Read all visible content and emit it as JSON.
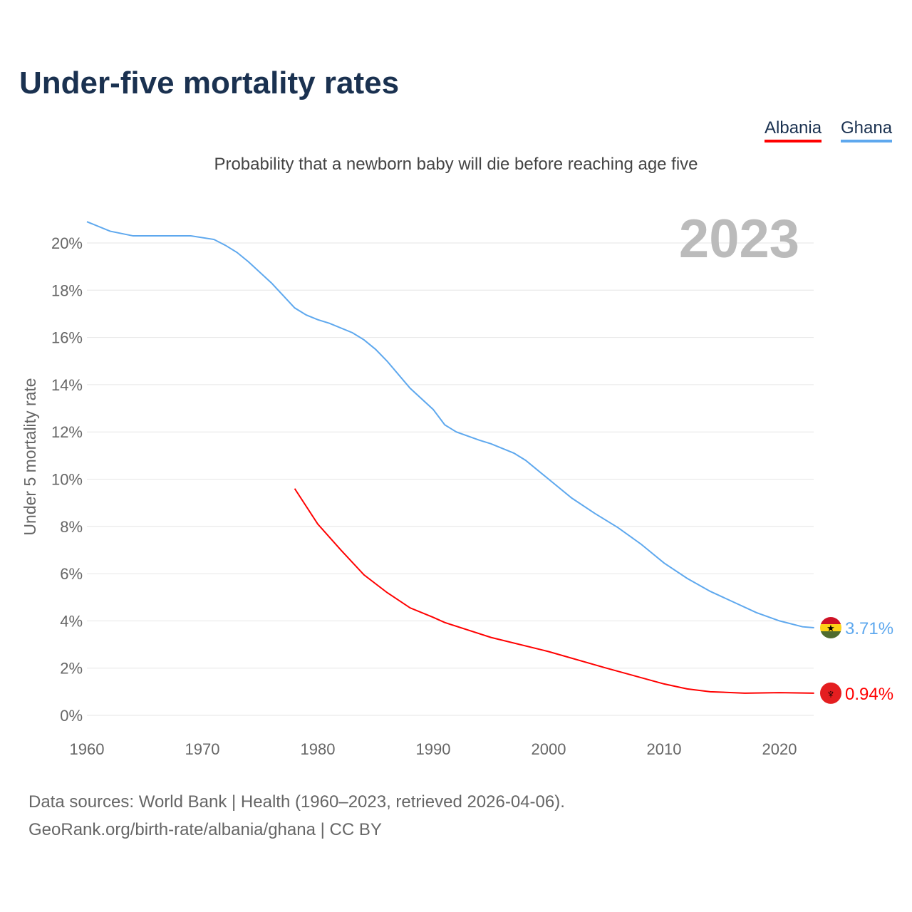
{
  "title": "Under-five mortality rates",
  "subtitle": "Probability that a newborn baby will die before reaching age five",
  "footer": {
    "line1": "Data sources: World Bank | Health (1960–2023, retrieved 2026-04-06).",
    "line2": "GeoRank.org/birth-rate/albania/ghana | CC BY"
  },
  "chart_data": {
    "type": "line",
    "title": "Under-five mortality rates",
    "xlabel": "",
    "ylabel": "Under 5 mortality rate",
    "year_label": "2023",
    "xlim": [
      1960,
      2023
    ],
    "ylim": [
      0,
      20
    ],
    "x_ticks": [
      1960,
      1970,
      1980,
      1990,
      2000,
      2010,
      2020
    ],
    "y_ticks": [
      0,
      2,
      4,
      6,
      8,
      10,
      12,
      14,
      16,
      18,
      20
    ],
    "y_tick_labels": [
      "0%",
      "2%",
      "4%",
      "6%",
      "8%",
      "10%",
      "12%",
      "14%",
      "16%",
      "18%",
      "20%"
    ],
    "grid": true,
    "legend": "top-right",
    "series": [
      {
        "name": "Albania",
        "color": "#ff0000",
        "end_label": "0.94%",
        "flag": "albania-flag",
        "x": [
          1978,
          1980,
          1982,
          1984,
          1986,
          1988,
          1990,
          1991,
          1995,
          2000,
          2005,
          2010,
          2012,
          2014,
          2017,
          2020,
          2023
        ],
        "y": [
          9.6,
          8.1,
          7.0,
          5.95,
          5.2,
          4.55,
          4.15,
          3.93,
          3.3,
          2.7,
          2.0,
          1.33,
          1.12,
          1.0,
          0.94,
          0.96,
          0.94
        ]
      },
      {
        "name": "Ghana",
        "color": "#5ea8ee",
        "end_label": "3.71%",
        "flag": "ghana-flag",
        "x": [
          1960,
          1962,
          1964,
          1969,
          1971,
          1972,
          1973,
          1974,
          1976,
          1978,
          1979,
          1980,
          1981,
          1983,
          1984,
          1985,
          1986,
          1988,
          1990,
          1991,
          1992,
          1994,
          1995,
          1997,
          1998,
          2000,
          2002,
          2004,
          2006,
          2008,
          2010,
          2012,
          2014,
          2016,
          2018,
          2020,
          2022,
          2023
        ],
        "y": [
          20.9,
          20.5,
          20.3,
          20.3,
          20.15,
          19.9,
          19.6,
          19.2,
          18.3,
          17.25,
          16.95,
          16.75,
          16.6,
          16.2,
          15.9,
          15.5,
          15.0,
          13.85,
          12.95,
          12.3,
          12.0,
          11.65,
          11.5,
          11.1,
          10.8,
          10.0,
          9.2,
          8.55,
          7.95,
          7.25,
          6.45,
          5.8,
          5.25,
          4.8,
          4.35,
          4.0,
          3.75,
          3.71
        ]
      }
    ]
  }
}
